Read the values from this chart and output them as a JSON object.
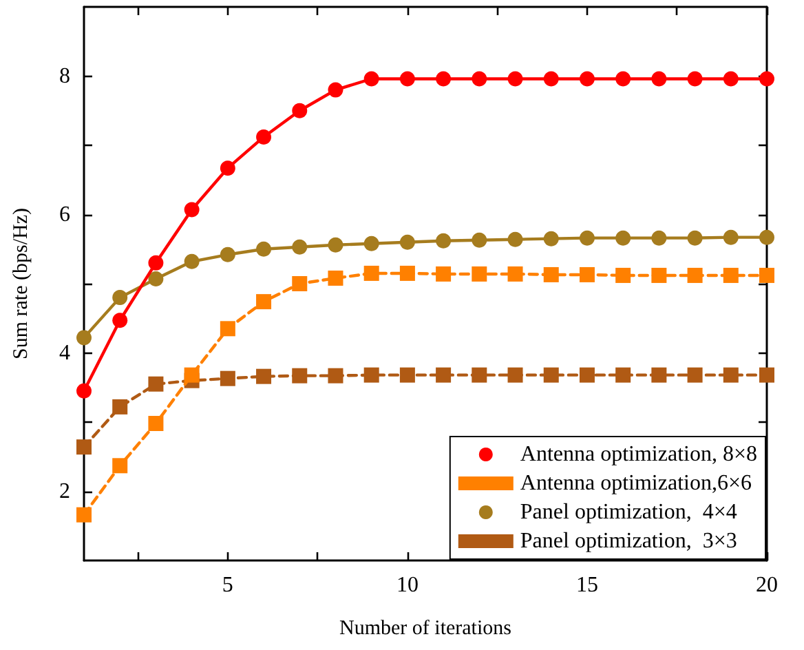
{
  "chart_data": {
    "type": "line",
    "xlabel": "Number of iterations",
    "ylabel": "Sum rate (bps/Hz)",
    "x": [
      1,
      2,
      3,
      4,
      5,
      6,
      7,
      8,
      9,
      10,
      11,
      12,
      13,
      14,
      15,
      16,
      17,
      18,
      19,
      20
    ],
    "xlim": [
      1,
      20
    ],
    "xticks": [
      {
        "value": 2.5,
        "label": null
      },
      5,
      {
        "value": 7.5,
        "label": null
      },
      10,
      {
        "value": 12.5,
        "label": null
      },
      15,
      {
        "value": 17.5,
        "label": null
      },
      20
    ],
    "ylim": [
      1,
      9
    ],
    "yticks": [
      2,
      {
        "value": 3,
        "label": null
      },
      4,
      {
        "value": 5,
        "label": null
      },
      6,
      {
        "value": 7,
        "label": null
      },
      8
    ],
    "grid": false,
    "legend": "bottom right",
    "series": [
      {
        "name": "Antenna optimization, 8×8",
        "color": "#ff0000",
        "marker": "circle",
        "line_style": "solid",
        "values": [
          3.45,
          4.47,
          5.3,
          6.07,
          6.67,
          7.12,
          7.5,
          7.8,
          7.96,
          7.96,
          7.96,
          7.96,
          7.96,
          7.96,
          7.96,
          7.96,
          7.96,
          7.96,
          7.96,
          7.96
        ]
      },
      {
        "name": "Antenna optimization,6×6",
        "color": "#ff8000",
        "marker": "square",
        "line_style": "dashed",
        "values": [
          1.66,
          2.37,
          2.98,
          3.68,
          4.35,
          4.74,
          5.0,
          5.08,
          5.15,
          5.15,
          5.14,
          5.14,
          5.14,
          5.13,
          5.13,
          5.12,
          5.12,
          5.12,
          5.12,
          5.12
        ]
      },
      {
        "name": "Panel optimization,  4×4",
        "color": "#a67c1e",
        "marker": "circle",
        "line_style": "solid",
        "values": [
          4.22,
          4.8,
          5.07,
          5.32,
          5.42,
          5.5,
          5.53,
          5.56,
          5.58,
          5.6,
          5.62,
          5.63,
          5.64,
          5.65,
          5.66,
          5.66,
          5.66,
          5.66,
          5.67,
          5.67
        ]
      },
      {
        "name": "Panel optimization,  3×3",
        "color": "#b05a14",
        "marker": "square",
        "line_style": "dashed",
        "values": [
          2.64,
          3.22,
          3.55,
          3.6,
          3.63,
          3.66,
          3.67,
          3.67,
          3.68,
          3.68,
          3.68,
          3.68,
          3.68,
          3.68,
          3.68,
          3.68,
          3.68,
          3.68,
          3.68,
          3.68
        ]
      }
    ]
  }
}
